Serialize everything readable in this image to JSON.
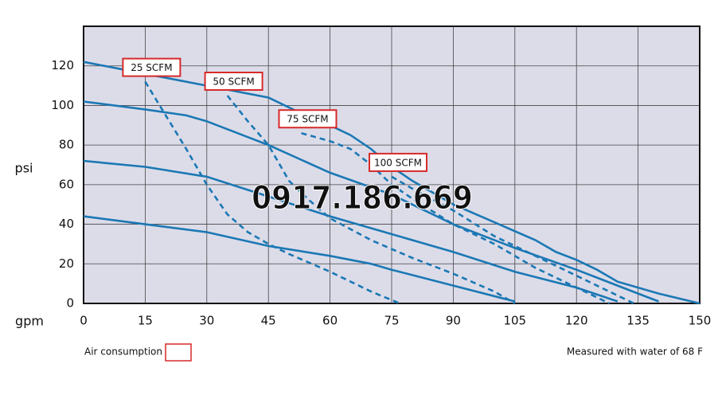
{
  "chart_data": {
    "type": "line",
    "x_label": "gpm",
    "y_label": "psi",
    "xlim": [
      0,
      150
    ],
    "xticks": [
      0,
      15,
      30,
      45,
      60,
      75,
      90,
      105,
      120,
      135,
      150
    ],
    "ylim": [
      0,
      140
    ],
    "yticks": [
      0,
      20,
      40,
      60,
      80,
      100,
      120
    ],
    "grid": true,
    "plot_background": "#dcdce9",
    "series": [
      {
        "color": "#1b78b4",
        "style": "solid",
        "x": [
          0,
          15,
          30,
          45,
          55,
          60,
          65,
          70,
          75,
          80,
          90,
          100,
          110,
          115,
          120,
          125,
          130,
          140,
          150
        ],
        "values": [
          122,
          116,
          110,
          104,
          94,
          90,
          85,
          78,
          69,
          62,
          50,
          41,
          32,
          26,
          22,
          17,
          11,
          5,
          0
        ]
      },
      {
        "color": "#1b78b4",
        "style": "solid",
        "x": [
          0,
          15,
          25,
          30,
          40,
          45,
          60,
          75,
          90,
          105,
          120,
          135,
          140
        ],
        "values": [
          102,
          98,
          95,
          92,
          84,
          80,
          66,
          55,
          40,
          28,
          17,
          5,
          1
        ]
      },
      {
        "color": "#1b78b4",
        "style": "solid",
        "x": [
          0,
          15,
          30,
          45,
          60,
          75,
          90,
          105,
          120,
          130
        ],
        "values": [
          72,
          69,
          64,
          54,
          44,
          35,
          26,
          16,
          8,
          1
        ]
      },
      {
        "color": "#1b78b4",
        "style": "solid",
        "x": [
          0,
          15,
          30,
          45,
          60,
          70,
          75,
          90,
          105
        ],
        "values": [
          44,
          40,
          36,
          29,
          24,
          20,
          17,
          9,
          1
        ]
      },
      {
        "name": "25 SCFM",
        "color": "#1b78b4",
        "style": "dashed",
        "x": [
          15,
          20,
          25,
          30,
          35,
          40,
          45,
          50,
          60,
          70,
          77
        ],
        "values": [
          112,
          95,
          78,
          60,
          45,
          36,
          30,
          25,
          16,
          6,
          0
        ]
      },
      {
        "name": "50 SCFM",
        "color": "#1b78b4",
        "style": "dashed",
        "x": [
          35,
          40,
          45,
          50,
          55,
          60,
          70,
          80,
          90,
          100,
          105
        ],
        "values": [
          105,
          92,
          80,
          62,
          52,
          43,
          32,
          23,
          15,
          6,
          0
        ]
      },
      {
        "name": "75 SCFM",
        "color": "#1b78b4",
        "style": "dashed",
        "x": [
          53,
          60,
          65,
          70,
          75,
          80,
          90,
          100,
          110,
          120,
          128
        ],
        "values": [
          86,
          82,
          78,
          70,
          60,
          53,
          40,
          30,
          18,
          8,
          0
        ]
      },
      {
        "name": "100 SCFM",
        "color": "#1b78b4",
        "style": "dashed",
        "x": [
          75,
          80,
          90,
          100,
          110,
          120,
          130,
          134
        ],
        "values": [
          64,
          58,
          47,
          34,
          24,
          14,
          4,
          0
        ]
      }
    ],
    "label_box_color": "#d62a2a",
    "legend": {
      "label": "Air consumption"
    },
    "note": "Measured with water of 68 F",
    "watermark": "0917.186.669",
    "watermark_color": "#3aa85a"
  }
}
